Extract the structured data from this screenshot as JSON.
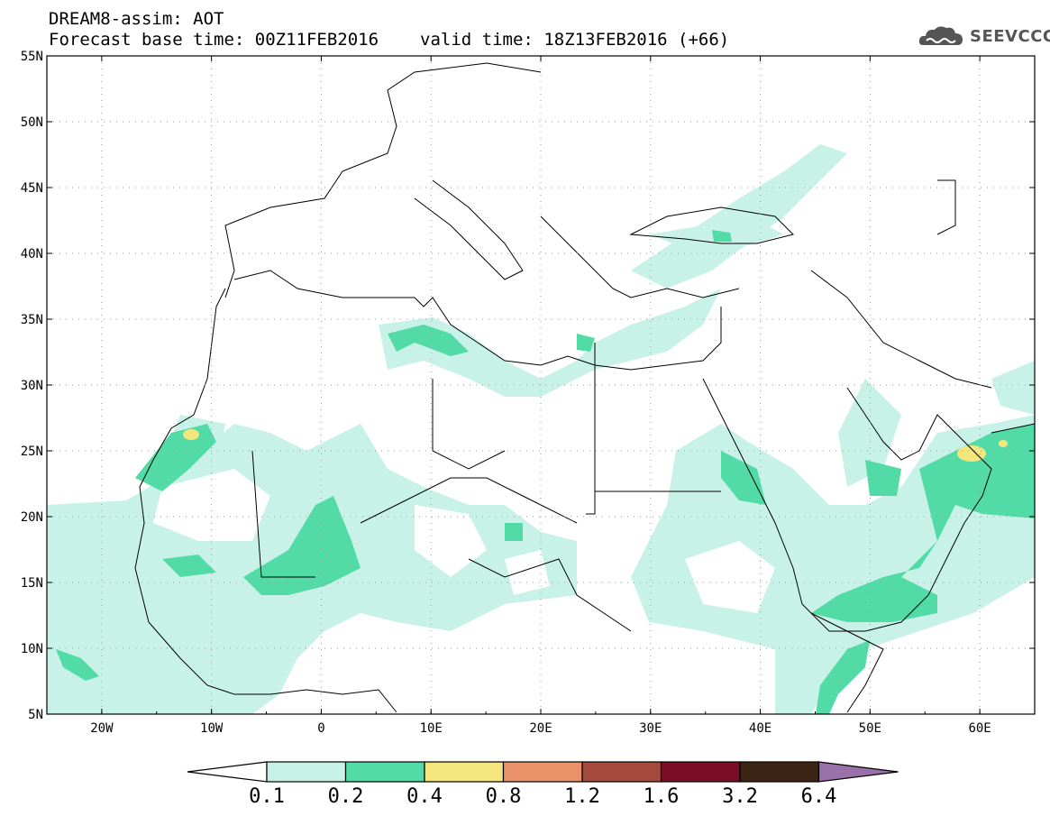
{
  "title": {
    "line1": "DREAM8-assim: AOT",
    "base_time": "Forecast base time: 00Z11FEB2016",
    "valid_time": "valid time: 18Z13FEB2016 (+66)"
  },
  "logo": {
    "text": "SEEVCCC",
    "icon": "cloud-icon"
  },
  "map": {
    "lon_range": [
      -25,
      65
    ],
    "lat_range": [
      5,
      55
    ],
    "lat_labels": [
      "55N",
      "50N",
      "45N",
      "40N",
      "35N",
      "30N",
      "25N",
      "20N",
      "15N",
      "10N",
      "5N"
    ],
    "lon_labels": [
      "20W",
      "10W",
      "0",
      "10E",
      "20E",
      "30E",
      "40E",
      "50E",
      "60E"
    ],
    "gridlines": true
  },
  "colorbar": {
    "labels": [
      "0.1",
      "0.2",
      "0.4",
      "0.8",
      "1.2",
      "1.6",
      "3.2",
      "6.4"
    ],
    "colors": [
      "#ffffff",
      "#c8f2e8",
      "#52dba6",
      "#f2e67c",
      "#ea926a",
      "#a64a3e",
      "#7a0e28",
      "#3c2414",
      "#9a70a8"
    ]
  }
}
